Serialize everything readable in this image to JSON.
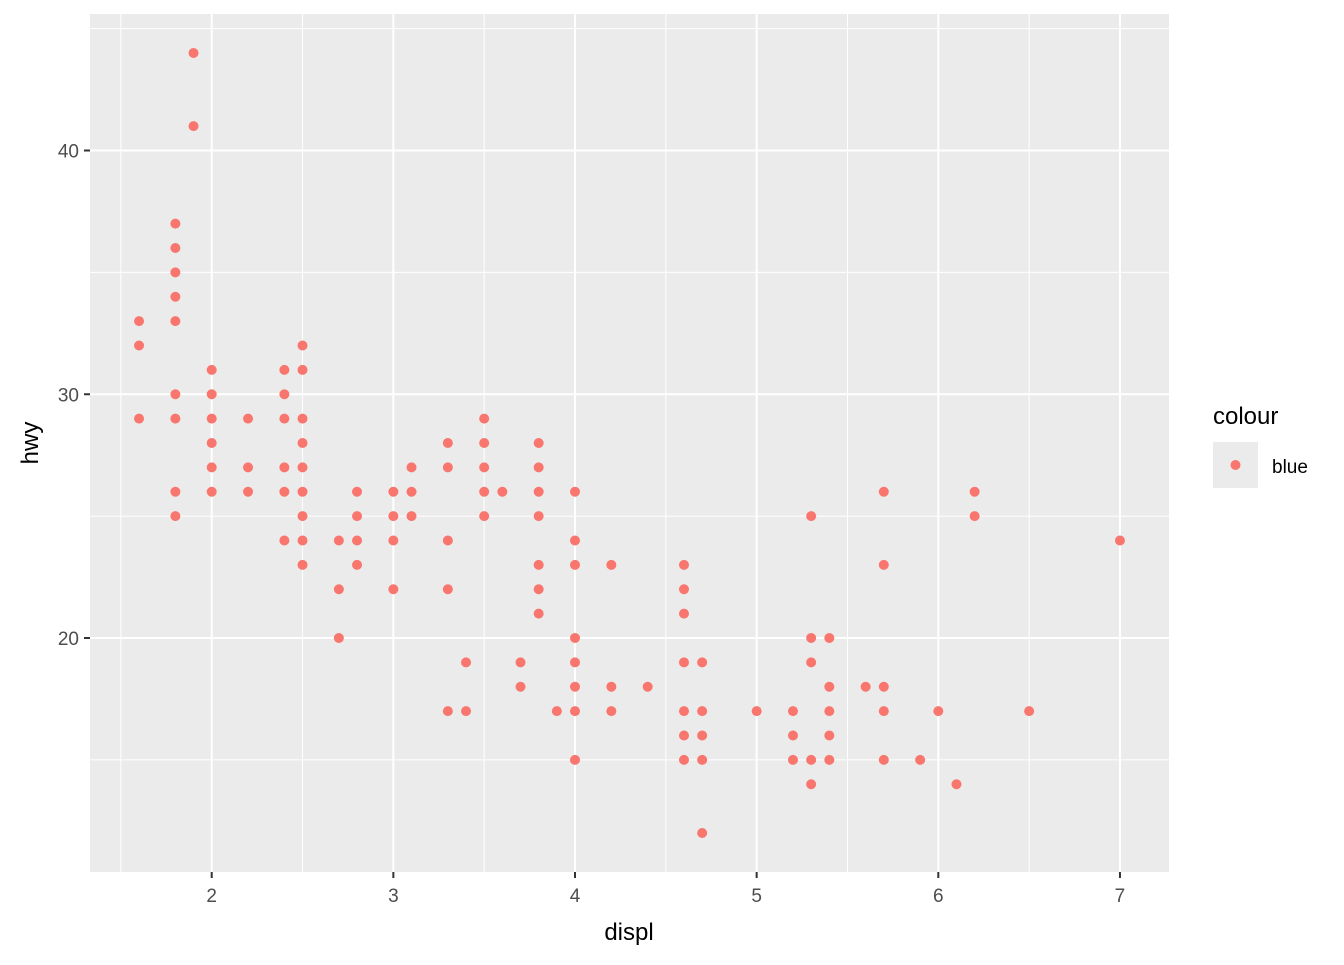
{
  "chart_data": {
    "type": "scatter",
    "title": "",
    "xlabel": "displ",
    "ylabel": "hwy",
    "xlim": [
      1.33,
      7.27
    ],
    "ylim": [
      10.4,
      45.6
    ],
    "x_ticks": [
      2,
      3,
      4,
      5,
      6,
      7
    ],
    "y_ticks": [
      20,
      30,
      40
    ],
    "grid": true,
    "legend": {
      "title": "colour",
      "position": "right",
      "entries": [
        "blue"
      ]
    },
    "colors": {
      "panel": "#ebebeb",
      "grid": "#ffffff",
      "point": "#f8766d"
    },
    "series": [
      {
        "name": "blue",
        "points": [
          [
            1.6,
            33
          ],
          [
            1.6,
            32
          ],
          [
            1.6,
            29
          ],
          [
            1.8,
            37
          ],
          [
            1.8,
            36
          ],
          [
            1.8,
            35
          ],
          [
            1.8,
            34
          ],
          [
            1.8,
            33
          ],
          [
            1.8,
            30
          ],
          [
            1.8,
            29
          ],
          [
            1.8,
            26
          ],
          [
            1.8,
            25
          ],
          [
            1.9,
            44
          ],
          [
            1.9,
            41
          ],
          [
            2.0,
            31
          ],
          [
            2.0,
            30
          ],
          [
            2.0,
            29
          ],
          [
            2.0,
            28
          ],
          [
            2.0,
            27
          ],
          [
            2.0,
            26
          ],
          [
            2.2,
            29
          ],
          [
            2.2,
            27
          ],
          [
            2.2,
            26
          ],
          [
            2.4,
            31
          ],
          [
            2.4,
            30
          ],
          [
            2.4,
            29
          ],
          [
            2.4,
            27
          ],
          [
            2.4,
            26
          ],
          [
            2.4,
            24
          ],
          [
            2.5,
            32
          ],
          [
            2.5,
            31
          ],
          [
            2.5,
            29
          ],
          [
            2.5,
            28
          ],
          [
            2.5,
            27
          ],
          [
            2.5,
            26
          ],
          [
            2.5,
            25
          ],
          [
            2.5,
            24
          ],
          [
            2.5,
            23
          ],
          [
            2.7,
            24
          ],
          [
            2.7,
            22
          ],
          [
            2.7,
            20
          ],
          [
            2.8,
            26
          ],
          [
            2.8,
            25
          ],
          [
            2.8,
            24
          ],
          [
            2.8,
            23
          ],
          [
            3.0,
            26
          ],
          [
            3.0,
            25
          ],
          [
            3.0,
            24
          ],
          [
            3.0,
            22
          ],
          [
            3.1,
            27
          ],
          [
            3.1,
            26
          ],
          [
            3.1,
            25
          ],
          [
            3.3,
            28
          ],
          [
            3.3,
            27
          ],
          [
            3.3,
            24
          ],
          [
            3.3,
            22
          ],
          [
            3.3,
            17
          ],
          [
            3.4,
            19
          ],
          [
            3.4,
            17
          ],
          [
            3.5,
            29
          ],
          [
            3.5,
            28
          ],
          [
            3.5,
            27
          ],
          [
            3.5,
            26
          ],
          [
            3.5,
            25
          ],
          [
            3.6,
            26
          ],
          [
            3.7,
            19
          ],
          [
            3.7,
            18
          ],
          [
            3.8,
            28
          ],
          [
            3.8,
            27
          ],
          [
            3.8,
            26
          ],
          [
            3.8,
            25
          ],
          [
            3.8,
            23
          ],
          [
            3.8,
            22
          ],
          [
            3.8,
            21
          ],
          [
            3.9,
            17
          ],
          [
            4.0,
            26
          ],
          [
            4.0,
            24
          ],
          [
            4.0,
            23
          ],
          [
            4.0,
            20
          ],
          [
            4.0,
            19
          ],
          [
            4.0,
            18
          ],
          [
            4.0,
            17
          ],
          [
            4.0,
            15
          ],
          [
            4.2,
            23
          ],
          [
            4.2,
            18
          ],
          [
            4.2,
            17
          ],
          [
            4.4,
            18
          ],
          [
            4.6,
            23
          ],
          [
            4.6,
            22
          ],
          [
            4.6,
            21
          ],
          [
            4.6,
            19
          ],
          [
            4.6,
            17
          ],
          [
            4.6,
            16
          ],
          [
            4.6,
            15
          ],
          [
            4.7,
            19
          ],
          [
            4.7,
            17
          ],
          [
            4.7,
            16
          ],
          [
            4.7,
            15
          ],
          [
            4.7,
            12
          ],
          [
            5.0,
            17
          ],
          [
            5.2,
            17
          ],
          [
            5.2,
            16
          ],
          [
            5.2,
            15
          ],
          [
            5.3,
            25
          ],
          [
            5.3,
            20
          ],
          [
            5.3,
            19
          ],
          [
            5.3,
            15
          ],
          [
            5.3,
            14
          ],
          [
            5.4,
            20
          ],
          [
            5.4,
            18
          ],
          [
            5.4,
            17
          ],
          [
            5.4,
            16
          ],
          [
            5.4,
            15
          ],
          [
            5.6,
            18
          ],
          [
            5.7,
            26
          ],
          [
            5.7,
            23
          ],
          [
            5.7,
            18
          ],
          [
            5.7,
            17
          ],
          [
            5.7,
            15
          ],
          [
            5.9,
            15
          ],
          [
            6.0,
            17
          ],
          [
            6.1,
            14
          ],
          [
            6.2,
            26
          ],
          [
            6.2,
            25
          ],
          [
            6.5,
            17
          ],
          [
            7.0,
            24
          ]
        ]
      }
    ]
  }
}
